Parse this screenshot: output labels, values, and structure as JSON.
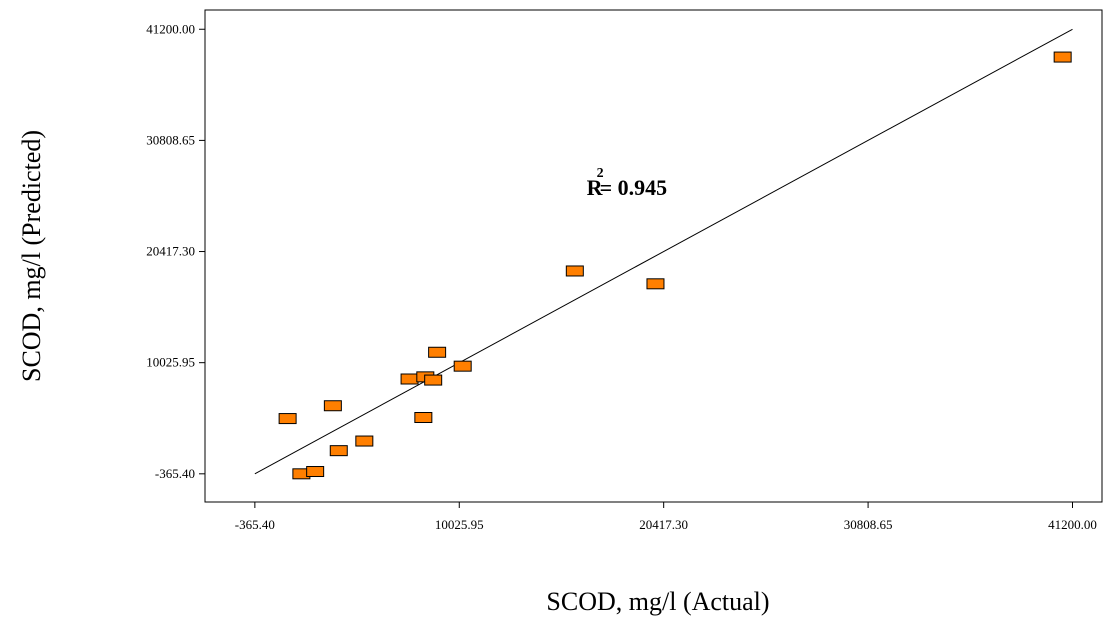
{
  "chart_data": {
    "type": "scatter",
    "xlabel": "SCOD, mg/l (Actual)",
    "ylabel": "SCOD, mg/l (Predicted)",
    "xlim": [
      -2900,
      42700
    ],
    "ylim": [
      -3000,
      43000
    ],
    "x_ticks": [
      -365.4,
      10025.95,
      20417.3,
      30808.65,
      41200.0
    ],
    "x_tick_labels": [
      "-365.40",
      "10025.95",
      "20417.30",
      "30808.65",
      "41200.00"
    ],
    "y_ticks": [
      -365.4,
      10025.95,
      20417.3,
      30808.65,
      41200.0
    ],
    "y_tick_labels": [
      "-365.40",
      "10025.95",
      "20417.30",
      "30808.65",
      "41200.00"
    ],
    "grid": false,
    "marker_color": "#FF7F00",
    "marker_edge_color": "#000000",
    "line_color": "#000000",
    "fit_line": {
      "x": [
        -365.4,
        41200.0
      ],
      "y": [
        -365.4,
        41200.0
      ]
    },
    "annotation": {
      "base": "R",
      "superscript": "2",
      "value": "= 0.945",
      "x": 16500,
      "y": 25700
    },
    "points": [
      {
        "x": 1300,
        "y": 4800
      },
      {
        "x": 2000,
        "y": -365
      },
      {
        "x": 2700,
        "y": -150
      },
      {
        "x": 3900,
        "y": 1800
      },
      {
        "x": 3600,
        "y": 6000
      },
      {
        "x": 5200,
        "y": 2700
      },
      {
        "x": 7500,
        "y": 8500
      },
      {
        "x": 8300,
        "y": 8700
      },
      {
        "x": 8700,
        "y": 8400
      },
      {
        "x": 8200,
        "y": 4900
      },
      {
        "x": 8900,
        "y": 11000
      },
      {
        "x": 10200,
        "y": 9700
      },
      {
        "x": 15900,
        "y": 18600
      },
      {
        "x": 20000,
        "y": 17400
      },
      {
        "x": 40700,
        "y": 38600
      }
    ]
  }
}
